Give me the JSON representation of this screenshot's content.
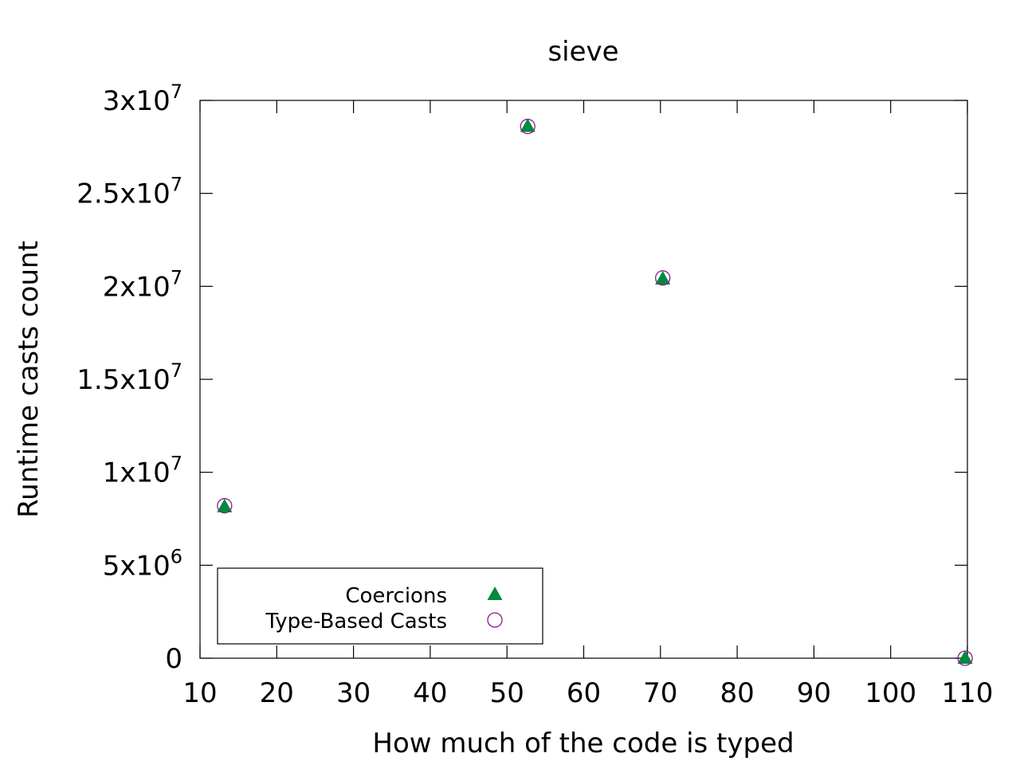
{
  "chart_data": {
    "type": "scatter",
    "title": "sieve",
    "xlabel": "How much of the code is typed",
    "ylabel": "Runtime casts count",
    "xlim": [
      10,
      110
    ],
    "ylim": [
      0,
      30000000
    ],
    "x_ticks": [
      10,
      20,
      30,
      40,
      50,
      60,
      70,
      80,
      90,
      100,
      110
    ],
    "x_tick_labels": [
      "10",
      "20",
      "30",
      "40",
      "50",
      "60",
      "70",
      "80",
      "90",
      "100",
      "110"
    ],
    "y_ticks": [
      {
        "value": 0,
        "mantissa": "0",
        "exponent": ""
      },
      {
        "value": 5000000,
        "mantissa": "5x10",
        "exponent": "6"
      },
      {
        "value": 10000000,
        "mantissa": "1x10",
        "exponent": "7"
      },
      {
        "value": 15000000,
        "mantissa": "1.5x10",
        "exponent": "7"
      },
      {
        "value": 20000000,
        "mantissa": "2x10",
        "exponent": "7"
      },
      {
        "value": 25000000,
        "mantissa": "2.5x10",
        "exponent": "7"
      },
      {
        "value": 30000000,
        "mantissa": "3x10",
        "exponent": "7"
      }
    ],
    "grid": false,
    "legend_position": "bottom-left",
    "series": [
      {
        "name": "Coercions",
        "marker": "filled-triangle",
        "color": "#008a3e",
        "points": [
          {
            "x": 13.2,
            "y": 8150000
          },
          {
            "x": 52.7,
            "y": 28600000
          },
          {
            "x": 70.3,
            "y": 20400000
          },
          {
            "x": 109.7,
            "y": 0
          }
        ]
      },
      {
        "name": "Type-Based Casts",
        "marker": "open-circle",
        "color": "#8b1a8b",
        "points": [
          {
            "x": 13.2,
            "y": 8200000
          },
          {
            "x": 52.7,
            "y": 28600000
          },
          {
            "x": 70.3,
            "y": 20450000
          },
          {
            "x": 109.7,
            "y": 0
          }
        ]
      }
    ]
  }
}
